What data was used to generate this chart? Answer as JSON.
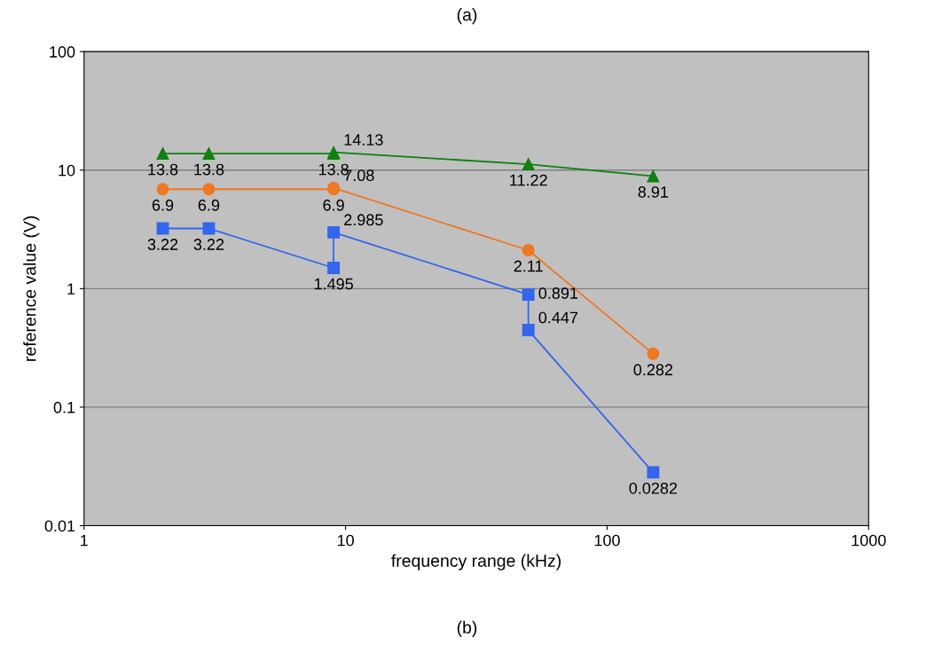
{
  "chart_data": {
    "type": "line",
    "xlabel": "frequency range (kHz)",
    "ylabel": "reference value (V)",
    "annotations": [
      "(a)",
      "(b)"
    ],
    "log": "xy",
    "xlim": [
      1,
      1000
    ],
    "ylim": [
      0.01,
      100
    ],
    "xticks": [
      1,
      10,
      100,
      1000
    ],
    "yticks": [
      0.01,
      0.1,
      1,
      10,
      100
    ],
    "grid": "y",
    "data_labels": true,
    "series": [
      {
        "color": "#108010",
        "marker": "triangle",
        "x": [
          2,
          3,
          9,
          9,
          50,
          150
        ],
        "values": [
          13.8,
          13.8,
          13.8,
          14.13,
          11.22,
          8.91
        ]
      },
      {
        "color": "#f07820",
        "marker": "circle",
        "x": [
          2,
          3,
          9,
          9,
          50,
          150
        ],
        "values": [
          6.9,
          6.9,
          6.9,
          7.08,
          2.11,
          0.282
        ]
      },
      {
        "color": "#3366ee",
        "marker": "square",
        "x": [
          2,
          3,
          9,
          9,
          50,
          50,
          150
        ],
        "values": [
          3.22,
          3.22,
          1.495,
          2.985,
          0.891,
          0.447,
          0.0282
        ]
      }
    ]
  }
}
